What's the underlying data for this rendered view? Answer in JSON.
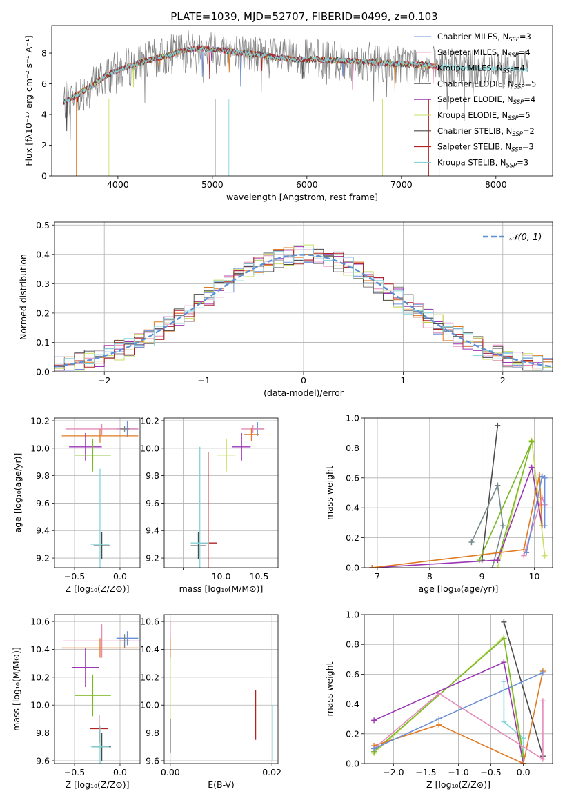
{
  "title": "PLATE=1039, MJD=52707, FIBERID=0499, z=0.103",
  "legend_spectrum": [
    {
      "label": "Chabrier MILES, N",
      "sub": "SSP",
      "suffix": "=3",
      "color": "#6b8fd6",
      "width": 0.9
    },
    {
      "label": "Salpeter MILES, N",
      "sub": "SSP",
      "suffix": "=4",
      "color": "#e58ab8",
      "width": 0.9
    },
    {
      "label": "Kroupa MILES, N",
      "sub": "SSP",
      "suffix": "=4",
      "color": "#e07a22",
      "width": 0.9
    },
    {
      "label": "Chabrier ELODIE, N",
      "sub": "SSP",
      "suffix": "=5",
      "color": "#808080",
      "width": 0.9
    },
    {
      "label": "Salpeter ELODIE, N",
      "sub": "SSP",
      "suffix": "=4",
      "color": "#9a36b4",
      "width": 0.9
    },
    {
      "label": "Kroupa ELODIE, N",
      "sub": "SSP",
      "suffix": "=5",
      "color": "#c8e064",
      "width": 0.9
    },
    {
      "label": "Chabrier STELIB, N",
      "sub": "SSP",
      "suffix": "=2",
      "color": "#4a4a4a",
      "width": 0.9
    },
    {
      "label": "Salpeter STELIB, N",
      "sub": "SSP",
      "suffix": "=3",
      "color": "#b22222",
      "width": 0.9
    },
    {
      "label": "Kroupa STELIB, N",
      "sub": "SSP",
      "suffix": "=3",
      "color": "#84d4d8",
      "width": 0.9
    }
  ],
  "chart_data": [
    {
      "id": "spectrum",
      "type": "line",
      "xlabel": "wavelength [Angstrom, rest frame]",
      "ylabel": "Flux [fλ10⁻¹⁷ erg cm⁻² s⁻¹ A⁻¹]",
      "xlim": [
        3300,
        8600
      ],
      "ylim": [
        0,
        9.8
      ],
      "xticks": [
        4000,
        5000,
        6000,
        7000,
        8000
      ],
      "yticks": [
        0,
        2,
        4,
        6,
        8
      ],
      "grid": false,
      "legend": "right",
      "continuum": {
        "x": [
          3420,
          3550,
          3700,
          3900,
          4100,
          4300,
          4500,
          4700,
          4900,
          5100,
          5300,
          5500,
          5700,
          5900,
          6100,
          6300,
          6500,
          6700,
          6900,
          7100,
          7300,
          7400
        ],
        "y": [
          4.8,
          5.2,
          5.8,
          6.6,
          7.1,
          7.5,
          7.8,
          8.2,
          8.3,
          8.2,
          8.0,
          7.9,
          7.7,
          7.6,
          7.6,
          7.5,
          7.5,
          7.4,
          7.3,
          7.3,
          7.2,
          7.1
        ]
      },
      "data_range": [
        3420,
        8350
      ]
    },
    {
      "id": "residuals",
      "type": "line",
      "xlabel": "(data-model)/error",
      "ylabel": "Normed distribution",
      "xlim": [
        -2.5,
        2.5
      ],
      "ylim": [
        0,
        0.51
      ],
      "xticks": [
        -2,
        -1,
        0,
        1,
        2
      ],
      "yticks": [
        0,
        0.1,
        0.2,
        0.3,
        0.4,
        0.5
      ],
      "grid": true,
      "legend": "top-right",
      "legend_label": "𝒩(0, 1)",
      "gauss_color": "#5b8fd6"
    },
    {
      "id": "age_Z",
      "type": "scatter",
      "xlabel": "Z [log₁₀(Z/Z⊙)]",
      "ylabel": "age  [log₁₀(age/yr)]",
      "xlim": [
        -0.72,
        0.22
      ],
      "ylim": [
        9.13,
        10.22
      ],
      "xticks": [
        -0.5,
        0.0
      ],
      "yticks": [
        9.2,
        9.4,
        9.6,
        9.8,
        10.0,
        10.2
      ],
      "grid": true,
      "points": [
        {
          "c": "#6b8fd6",
          "x": 0.08,
          "y": 10.14,
          "xe": 0.12,
          "ye": 0.06
        },
        {
          "c": "#e58ab8",
          "x": -0.2,
          "y": 10.14,
          "xe": 0.4,
          "ye": 0.04
        },
        {
          "c": "#e07a22",
          "x": -0.22,
          "y": 10.09,
          "xe": 0.42,
          "ye": 0.05
        },
        {
          "c": "#808080",
          "x": 0.05,
          "y": 10.14,
          "xe": 0.05,
          "ye": 0.02
        },
        {
          "c": "#9a36b4",
          "x": -0.38,
          "y": 10.01,
          "xe": 0.18,
          "ye": 0.1
        },
        {
          "c": "#c8e064",
          "x": -0.3,
          "y": 9.95,
          "xe": 0.2,
          "ye": 0.1
        },
        {
          "c": "#7ab828",
          "x": -0.3,
          "y": 9.95,
          "xe": 0.2,
          "ye": 0.12
        },
        {
          "c": "#4a4a4a",
          "x": -0.2,
          "y": 9.29,
          "xe": 0.09,
          "ye": 0.1
        },
        {
          "c": "#84d4d8",
          "x": -0.22,
          "y": 9.3,
          "xe": 0.1,
          "ye": 0.55
        }
      ]
    },
    {
      "id": "age_mass",
      "type": "scatter",
      "xlabel": "mass [log₁₀(M/M⊙)]",
      "ylabel": "",
      "xlim": [
        9.25,
        10.75
      ],
      "ylim": [
        9.13,
        10.22
      ],
      "xticks": [
        9.5,
        10.0,
        10.5
      ],
      "xticklabels": [
        "",
        "10.0",
        "10.5"
      ],
      "yticks": [
        9.2,
        9.4,
        9.6,
        9.8,
        10.0,
        10.2
      ],
      "grid": true,
      "points": [
        {
          "c": "#6b8fd6",
          "x": 10.48,
          "y": 10.14,
          "xe": 0.08,
          "ye": 0.05
        },
        {
          "c": "#e58ab8",
          "x": 10.42,
          "y": 10.14,
          "xe": 0.15,
          "ye": 0.03
        },
        {
          "c": "#e07a22",
          "x": 10.4,
          "y": 10.1,
          "xe": 0.1,
          "ye": 0.05
        },
        {
          "c": "#9a36b4",
          "x": 10.27,
          "y": 10.01,
          "xe": 0.12,
          "ye": 0.1
        },
        {
          "c": "#c8e064",
          "x": 10.07,
          "y": 9.95,
          "xe": 0.12,
          "ye": 0.12
        },
        {
          "c": "#b22222",
          "x": 9.83,
          "y": 9.31,
          "xe": 0.12,
          "ye": 0.66
        },
        {
          "c": "#4a4a4a",
          "x": 9.7,
          "y": 9.29,
          "xe": 0.1,
          "ye": 0.1
        },
        {
          "c": "#84d4d8",
          "x": 9.72,
          "y": 9.31,
          "xe": 0.12,
          "ye": 0.7
        }
      ]
    },
    {
      "id": "weight_age",
      "type": "line",
      "xlabel": "age  [log₁₀(age/yr)]",
      "ylabel": "mass weight",
      "xlim": [
        6.75,
        10.35
      ],
      "ylim": [
        0,
        1.0
      ],
      "xticks": [
        7,
        8,
        9,
        10
      ],
      "yticks": [
        0,
        0.2,
        0.4,
        0.6,
        0.8,
        1.0
      ],
      "grid": true,
      "series": [
        {
          "c": "#4a4a4a",
          "x": [
            9.0,
            9.3
          ],
          "y": [
            0.05,
            0.95
          ]
        },
        {
          "c": "#84d4d8",
          "x": [
            8.8,
            9.3,
            9.4
          ],
          "y": [
            0.17,
            0.55,
            0.28
          ]
        },
        {
          "c": "#7a8a8a",
          "x": [
            8.8,
            9.3,
            9.4,
            9.2
          ],
          "y": [
            0.17,
            0.55,
            0.28,
            0.0
          ]
        },
        {
          "c": "#c8e064",
          "x": [
            9.3,
            9.95,
            10.2
          ],
          "y": [
            0.0,
            0.85,
            0.08
          ]
        },
        {
          "c": "#7ab828",
          "x": [
            8.95,
            9.95,
            9.3
          ],
          "y": [
            0.05,
            0.84,
            0.05
          ]
        },
        {
          "c": "#9a36b4",
          "x": [
            6.9,
            9.3,
            9.95,
            10.15
          ],
          "y": [
            0.0,
            0.05,
            0.67,
            0.28
          ]
        },
        {
          "c": "#e07a22",
          "x": [
            6.9,
            9.8,
            10.1,
            10.15
          ],
          "y": [
            0.0,
            0.12,
            0.62,
            0.28
          ]
        },
        {
          "c": "#e58ab8",
          "x": [
            9.8,
            10.15,
            10.2
          ],
          "y": [
            0.08,
            0.47,
            0.42
          ]
        },
        {
          "c": "#6b8fd6",
          "x": [
            9.85,
            10.15,
            10.2,
            10.2
          ],
          "y": [
            0.1,
            0.61,
            0.6,
            0.28
          ]
        }
      ]
    },
    {
      "id": "mass_Z",
      "type": "scatter",
      "xlabel": "Z [log₁₀(Z/Z⊙)]",
      "ylabel": "mass [log₁₀(M/M⊙)]",
      "xlim": [
        -0.72,
        0.22
      ],
      "ylim": [
        9.58,
        10.65
      ],
      "xticks": [
        -0.5,
        0.0
      ],
      "yticks": [
        9.6,
        9.8,
        10.0,
        10.2,
        10.4,
        10.6
      ],
      "grid": true,
      "points": [
        {
          "c": "#6b8fd6",
          "x": 0.08,
          "y": 10.48,
          "xe": 0.12,
          "ye": 0.05
        },
        {
          "c": "#e58ab8",
          "x": -0.2,
          "y": 10.46,
          "xe": 0.42,
          "ye": 0.12
        },
        {
          "c": "#e07a22",
          "x": -0.22,
          "y": 10.41,
          "xe": 0.42,
          "ye": 0.07
        },
        {
          "c": "#808080",
          "x": 0.05,
          "y": 10.46,
          "xe": 0.05,
          "ye": 0.05
        },
        {
          "c": "#9a36b4",
          "x": -0.38,
          "y": 10.27,
          "xe": 0.15,
          "ye": 0.14
        },
        {
          "c": "#c8e064",
          "x": -0.3,
          "y": 10.07,
          "xe": 0.2,
          "ye": 0.13
        },
        {
          "c": "#7ab828",
          "x": -0.3,
          "y": 10.07,
          "xe": 0.2,
          "ye": 0.15
        },
        {
          "c": "#b22222",
          "x": -0.23,
          "y": 9.83,
          "xe": 0.1,
          "ye": 0.1
        },
        {
          "c": "#4a4a4a",
          "x": -0.2,
          "y": 9.7,
          "xe": 0.1,
          "ye": 0.1
        },
        {
          "c": "#84d4d8",
          "x": -0.22,
          "y": 9.7,
          "xe": 0.1,
          "ye": 0.15
        }
      ]
    },
    {
      "id": "mass_ebv",
      "type": "scatter",
      "xlabel": "E(B-V)",
      "ylabel": "",
      "xlim": [
        -0.0012,
        0.0212
      ],
      "ylim": [
        9.58,
        10.65
      ],
      "xticks": [
        0.0,
        0.02
      ],
      "xticklabels": [
        "0.00",
        "0.02"
      ],
      "yticks": [
        9.6,
        9.8,
        10.0,
        10.2,
        10.4,
        10.6
      ],
      "grid": true,
      "points": [
        {
          "c": "#e58ab8",
          "x": 0.0,
          "y": 10.46,
          "xe": 0,
          "ye": 0.14
        },
        {
          "c": "#e07a22",
          "x": 0.0,
          "y": 10.41,
          "xe": 0,
          "ye": 0.07
        },
        {
          "c": "#c8e064",
          "x": 0.0,
          "y": 10.12,
          "xe": 0,
          "ye": 0.22
        },
        {
          "c": "#4a4a4a",
          "x": 0.0,
          "y": 9.78,
          "xe": 0,
          "ye": 0.12
        },
        {
          "c": "#b22222",
          "x": 0.0168,
          "y": 9.93,
          "xe": 0,
          "ye": 0.18
        },
        {
          "c": "#84d4d8",
          "x": 0.0201,
          "y": 9.8,
          "xe": 0,
          "ye": 0.2
        }
      ]
    },
    {
      "id": "weight_Z",
      "type": "line",
      "xlabel": "Z [log₁₀(Z/Z⊙)]",
      "ylabel": "mass weight",
      "xlim": [
        -2.45,
        0.45
      ],
      "ylim": [
        0,
        1.0
      ],
      "xticks": [
        -2.0,
        -1.5,
        -1.0,
        -0.5,
        0.0
      ],
      "yticks": [
        0,
        0.2,
        0.4,
        0.6,
        0.8,
        1.0
      ],
      "grid": true,
      "series": [
        {
          "c": "#4a4a4a",
          "x": [
            -0.3,
            0.3
          ],
          "y": [
            0.95,
            0.05
          ]
        },
        {
          "c": "#84d4d8",
          "x": [
            -0.3,
            -0.3,
            0.0,
            0.0
          ],
          "y": [
            0.55,
            0.28,
            0.17,
            0.0
          ]
        },
        {
          "c": "#c8e064",
          "x": [
            -2.3,
            -0.3,
            0.0
          ],
          "y": [
            0.07,
            0.85,
            0.0
          ]
        },
        {
          "c": "#7ab828",
          "x": [
            -2.3,
            -0.3,
            0.0
          ],
          "y": [
            0.08,
            0.84,
            0.05
          ]
        },
        {
          "c": "#9a36b4",
          "x": [
            -2.3,
            -0.3,
            0.0
          ],
          "y": [
            0.29,
            0.68,
            0.0
          ]
        },
        {
          "c": "#e07a22",
          "x": [
            -2.3,
            -1.3,
            0.0,
            0.3
          ],
          "y": [
            0.12,
            0.26,
            0.0,
            0.62
          ]
        },
        {
          "c": "#e58ab8",
          "x": [
            -2.3,
            -1.3,
            0.3,
            0.3
          ],
          "y": [
            0.1,
            0.47,
            0.03,
            0.42
          ]
        },
        {
          "c": "#6b8fd6",
          "x": [
            -2.3,
            -1.3,
            0.3
          ],
          "y": [
            0.1,
            0.3,
            0.61
          ]
        }
      ]
    }
  ]
}
